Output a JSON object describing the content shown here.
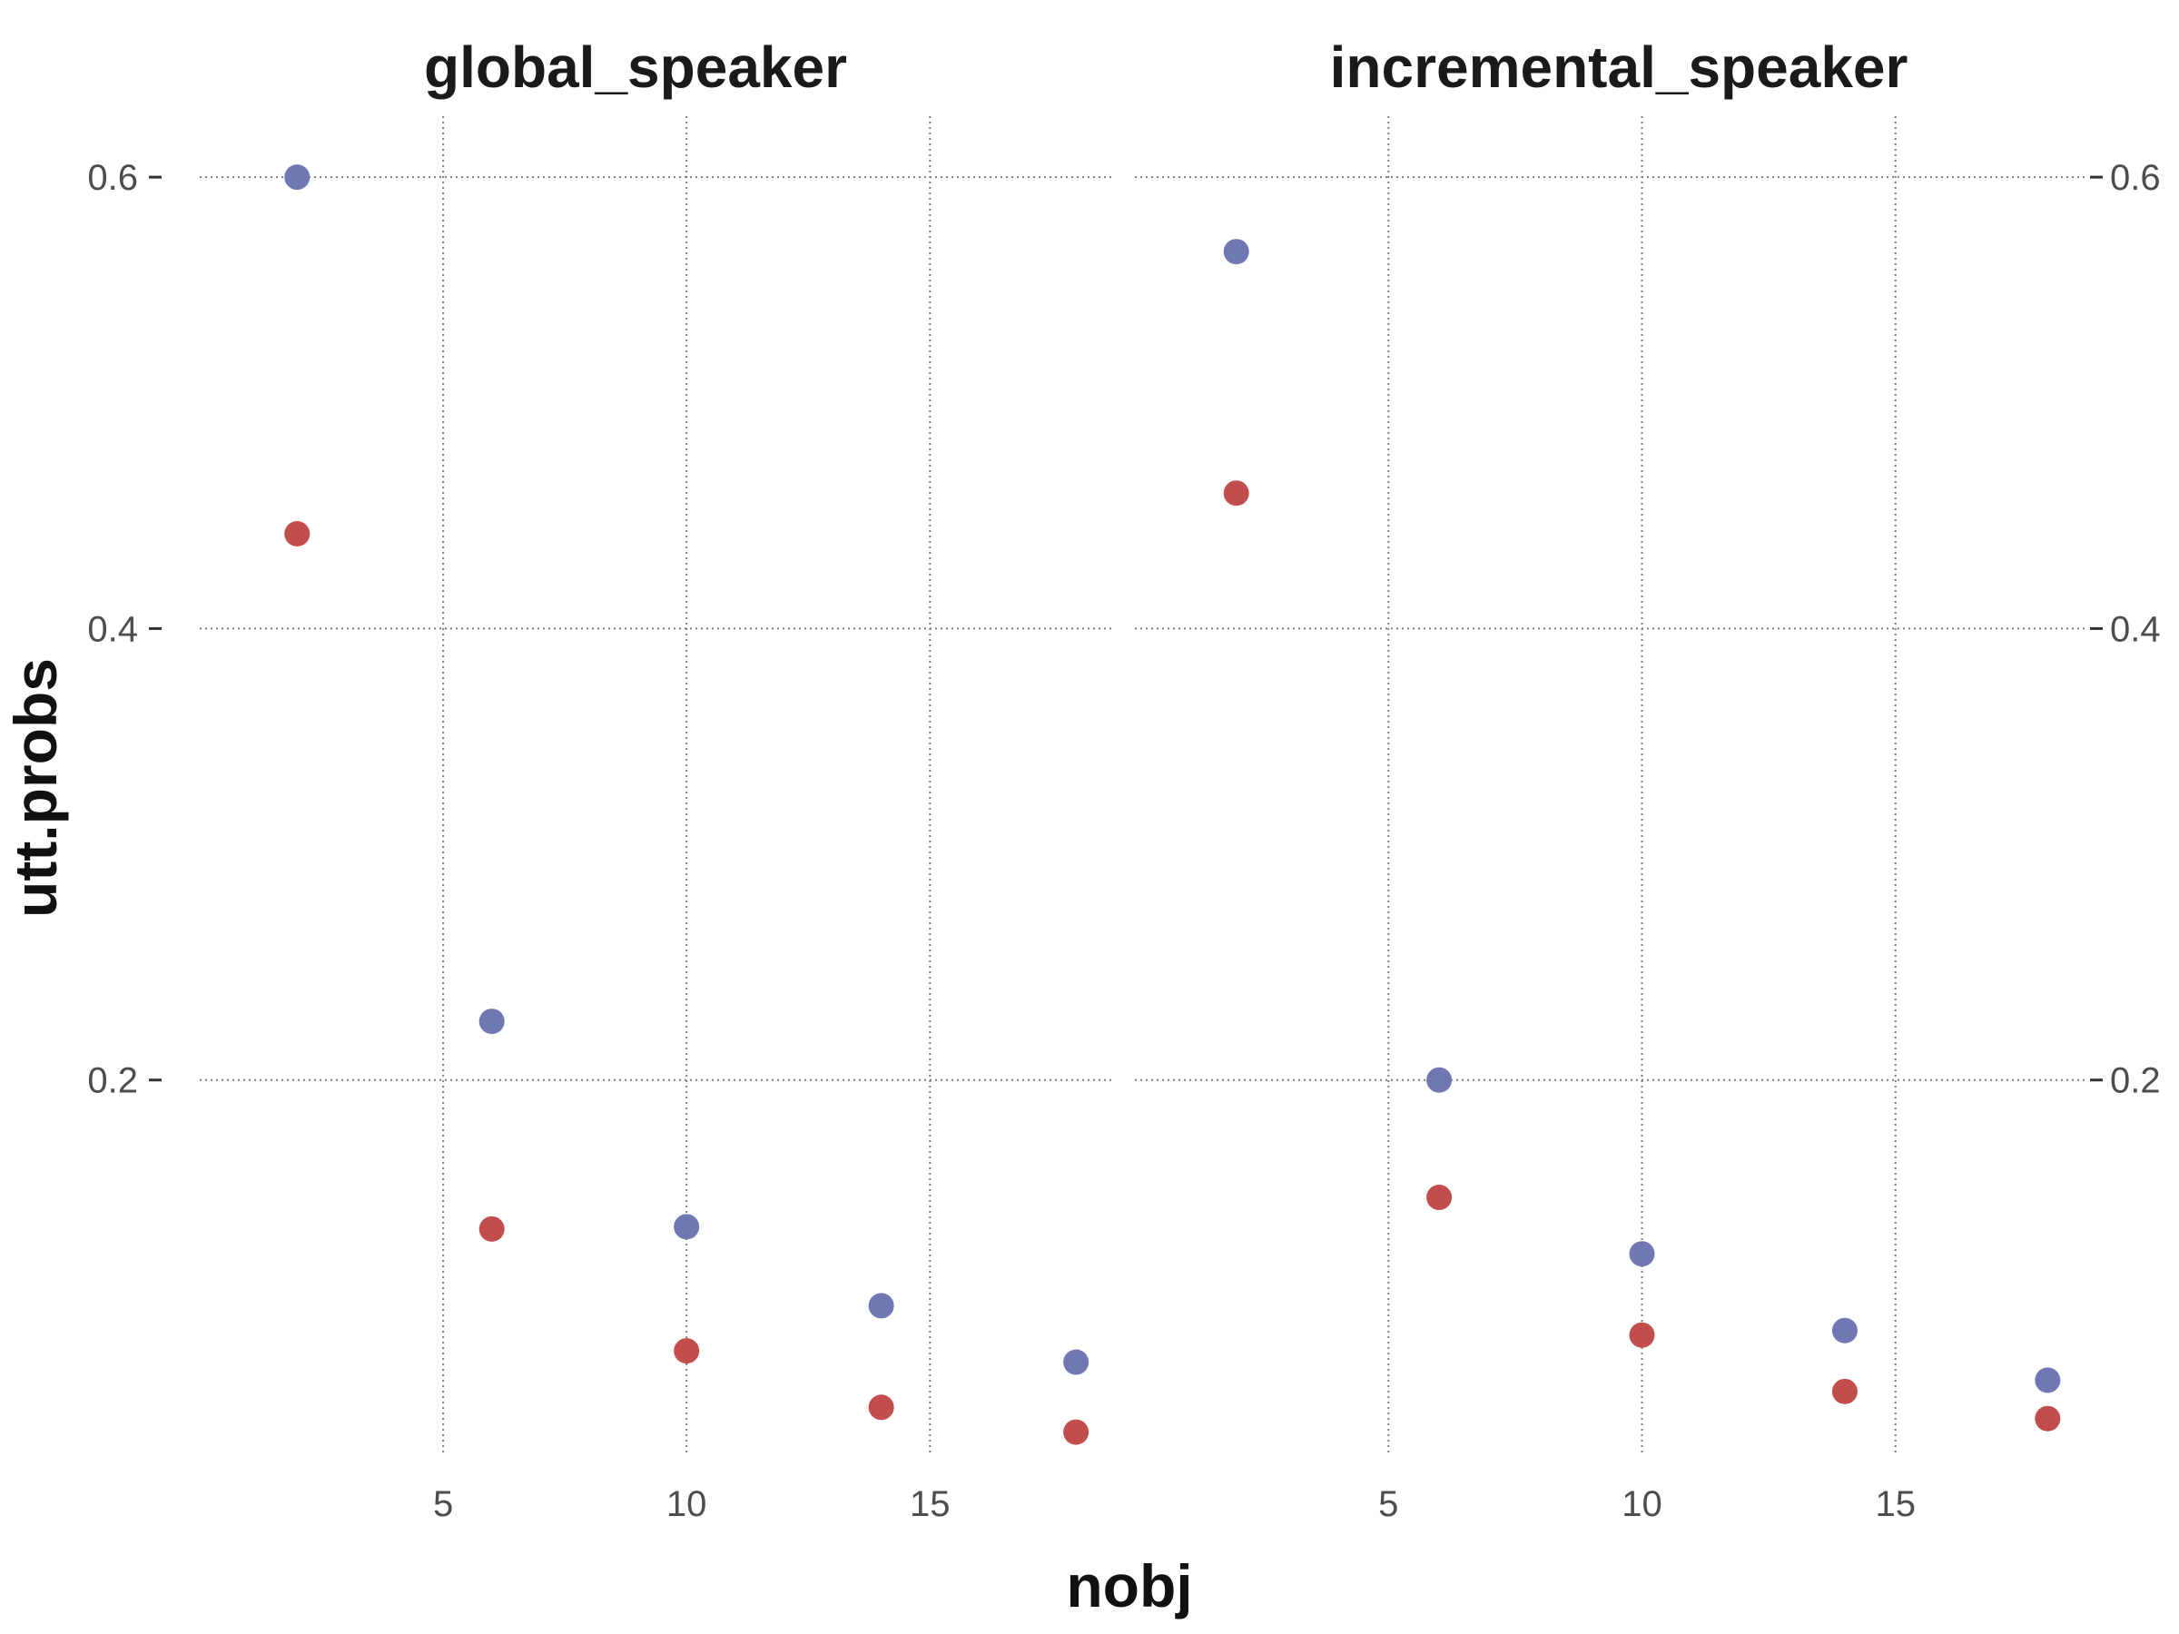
{
  "chart_data": [
    {
      "type": "scatter",
      "title": "global_speaker",
      "xlabel": "nobj",
      "ylabel": "utt.probs",
      "xticks": [
        5,
        10,
        15
      ],
      "yticks": [
        0.2,
        0.4,
        0.6
      ],
      "xlim": [
        0,
        18.8
      ],
      "ylim": [
        0.035,
        0.627
      ],
      "grid": true,
      "legend": "none",
      "series": [
        {
          "color": "#7078b4",
          "x": [
            2,
            6,
            10,
            14,
            18
          ],
          "y": [
            0.6,
            0.226,
            0.135,
            0.1,
            0.075
          ]
        },
        {
          "color": "#c24d4d",
          "x": [
            2,
            6,
            10,
            14,
            18
          ],
          "y": [
            0.442,
            0.134,
            0.08,
            0.055,
            0.044
          ]
        }
      ]
    },
    {
      "type": "scatter",
      "title": "incremental_speaker",
      "xlabel": "nobj",
      "ylabel": "utt.probs",
      "xticks": [
        5,
        10,
        15
      ],
      "yticks": [
        0.2,
        0.4,
        0.6
      ],
      "xlim": [
        0,
        18.8
      ],
      "ylim": [
        0.035,
        0.627
      ],
      "grid": true,
      "legend": "none",
      "series": [
        {
          "color": "#7078b4",
          "x": [
            2,
            6,
            10,
            14,
            18
          ],
          "y": [
            0.567,
            0.2,
            0.123,
            0.089,
            0.067
          ]
        },
        {
          "color": "#c24d4d",
          "x": [
            2,
            6,
            10,
            14,
            18
          ],
          "y": [
            0.46,
            0.148,
            0.087,
            0.062,
            0.05
          ]
        }
      ]
    }
  ],
  "axes": {
    "x_title": "nobj",
    "y_title": "utt.probs"
  }
}
